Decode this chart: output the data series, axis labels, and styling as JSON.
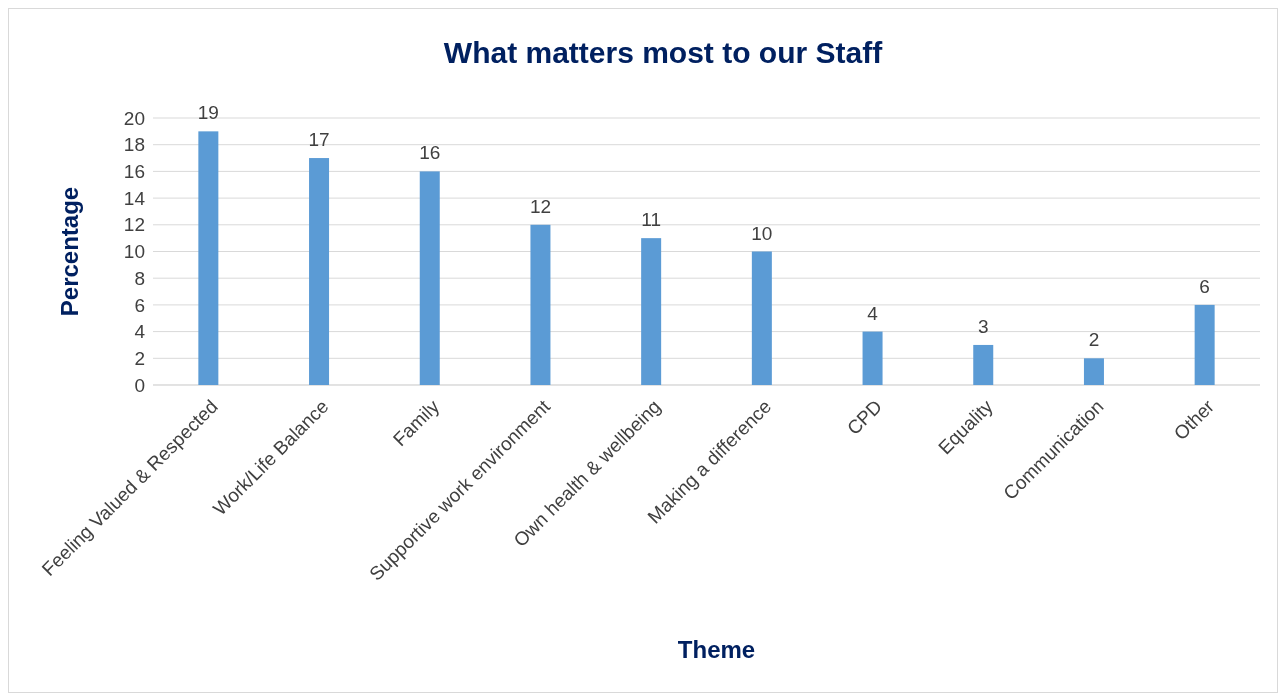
{
  "chart_data": {
    "type": "bar",
    "title": "What matters most to our Staff",
    "xlabel": "Theme",
    "ylabel": "Percentage",
    "categories": [
      "Feeling Valued & Respected",
      "Work/Life Balance",
      "Family",
      "Supportive work environment",
      "Own health & wellbeing",
      "Making a difference",
      "CPD",
      "Equality",
      "Communication",
      "Other"
    ],
    "values": [
      19,
      17,
      16,
      12,
      11,
      10,
      4,
      3,
      2,
      6
    ],
    "color": "#5b9bd5",
    "ylim": [
      0,
      20
    ],
    "yticks": [
      0,
      2,
      4,
      6,
      8,
      10,
      12,
      14,
      16,
      18,
      20
    ],
    "grid": "y",
    "data_labels": true
  }
}
